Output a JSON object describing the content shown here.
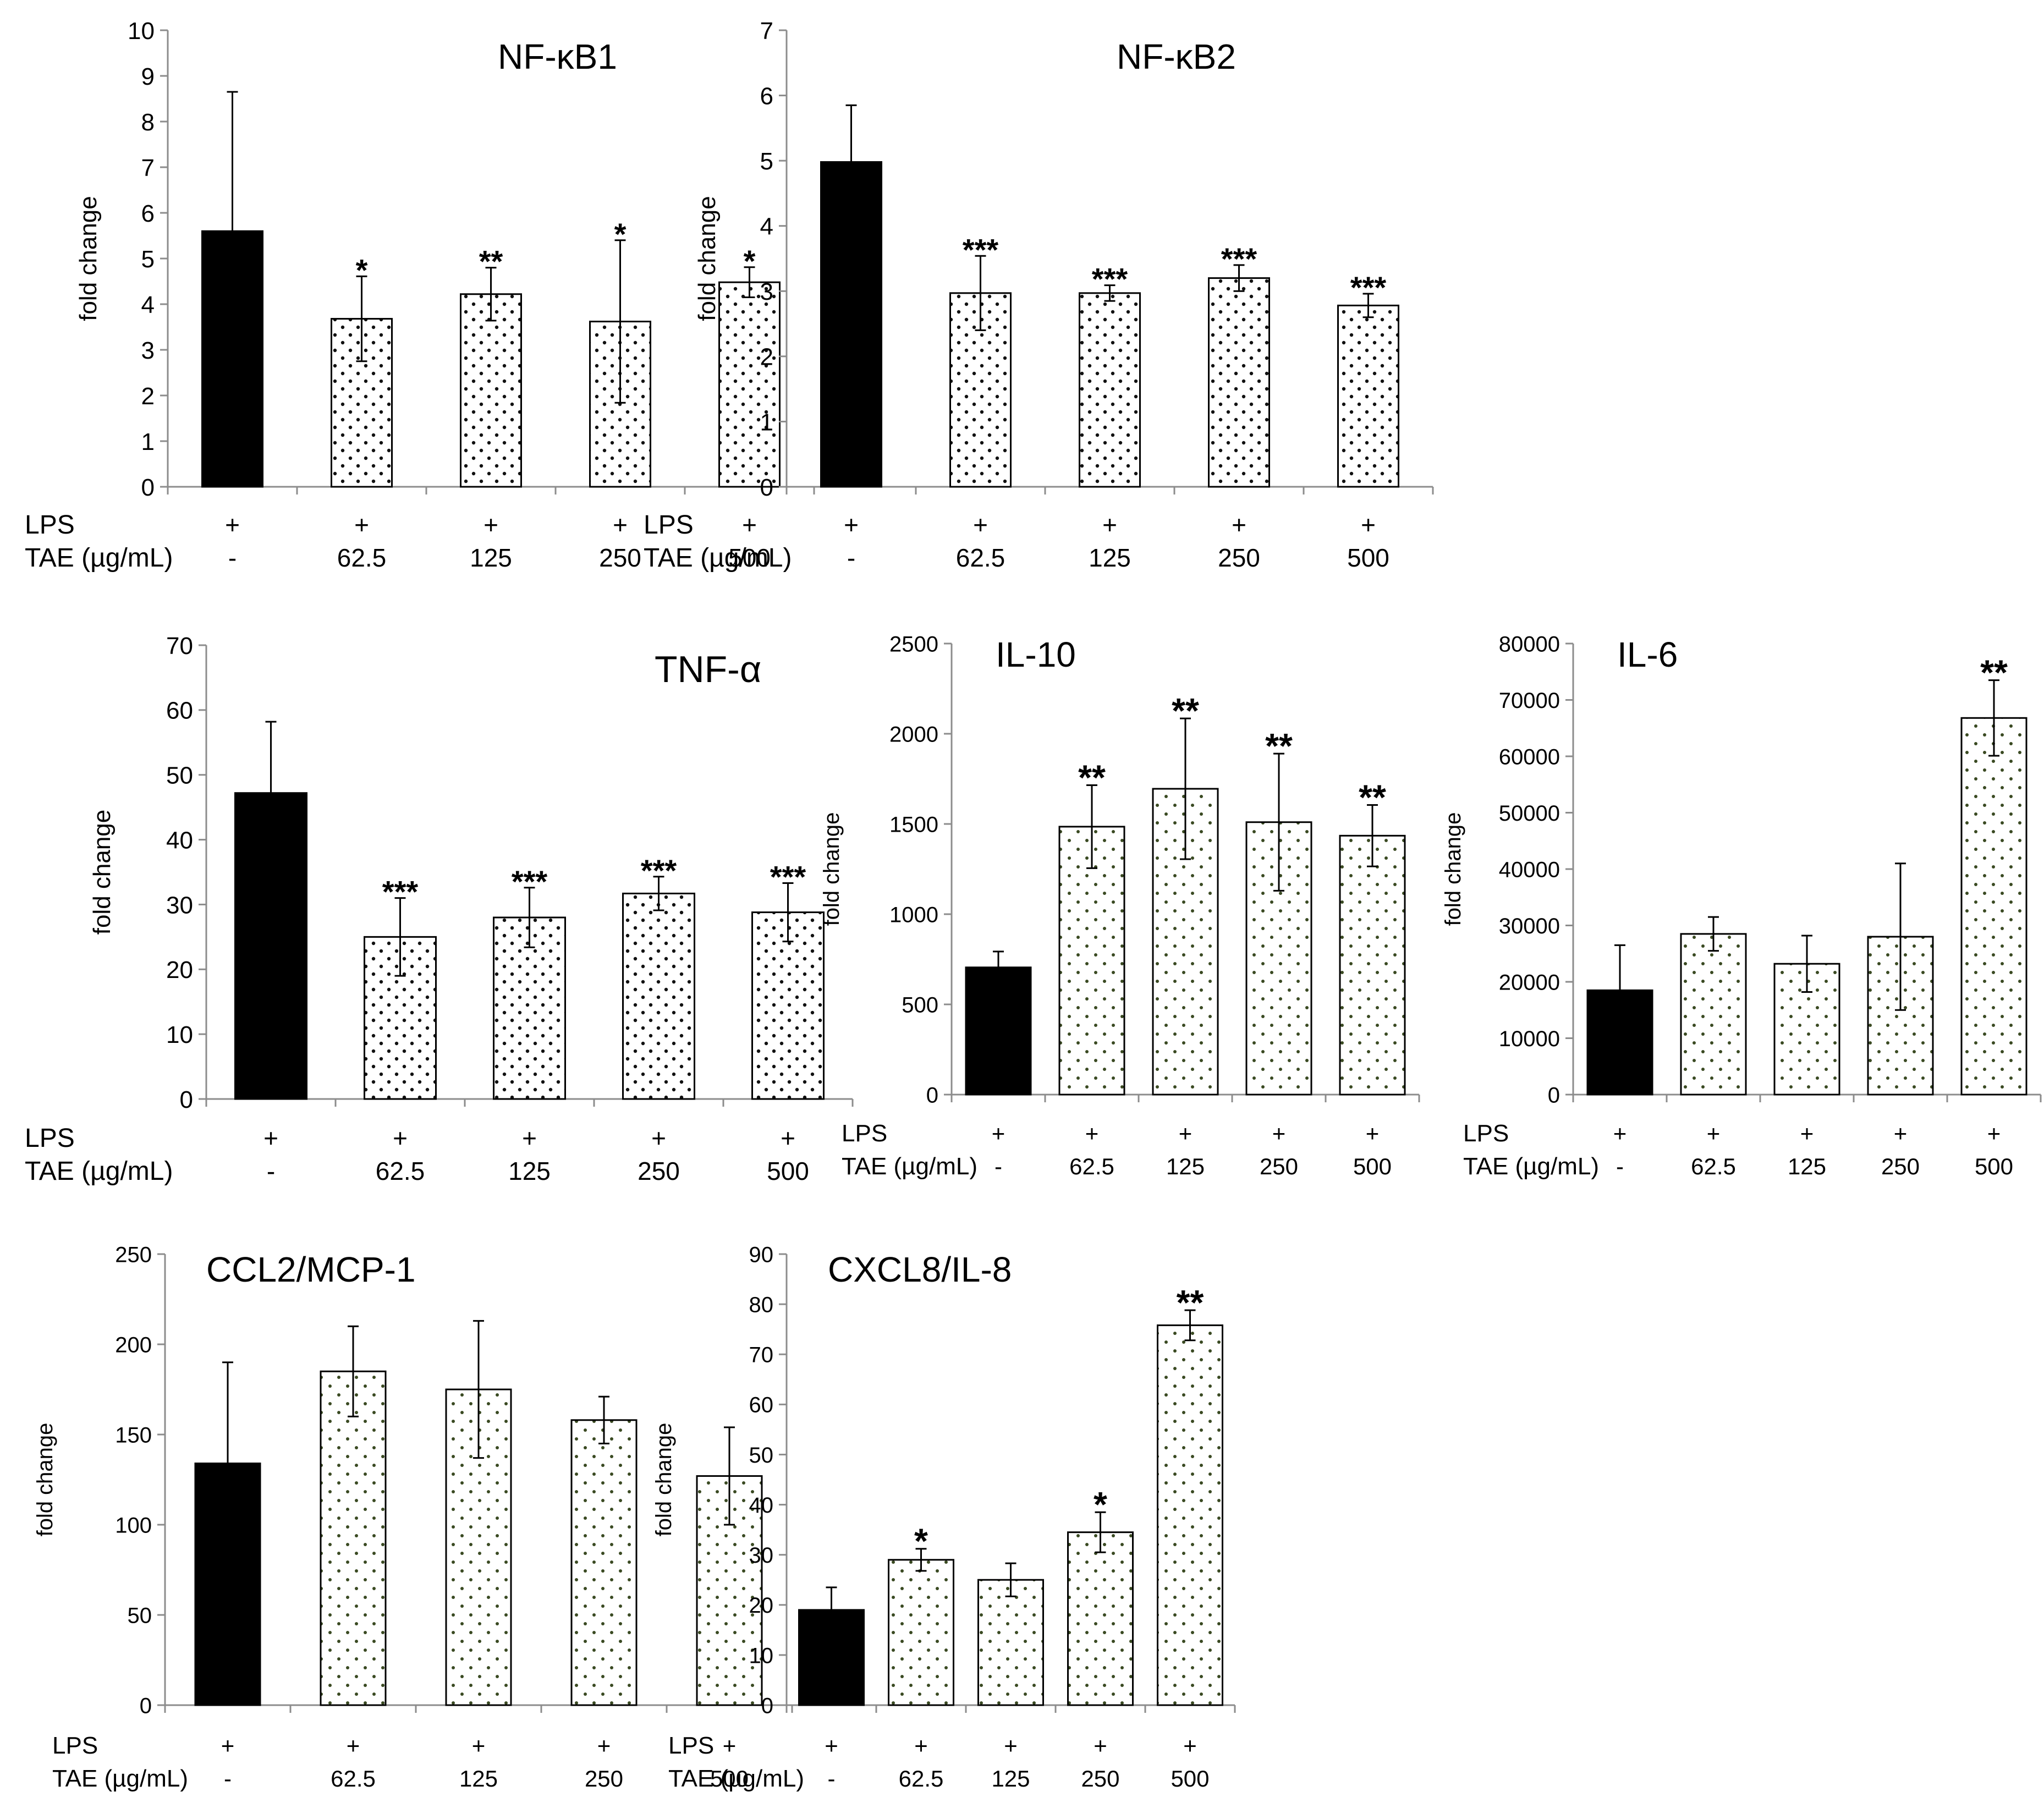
{
  "colors": {
    "control_bar": "#000000",
    "treated_fill": "#ffffff",
    "dots_black": "#111111",
    "dots_green": "#3a4a22",
    "axis": "#8c8c8c"
  },
  "row_labels": {
    "lps": "LPS",
    "tae": "TAE (µg/mL)"
  },
  "chart_data": [
    {
      "type": "bar",
      "title": "NF-κB1",
      "ylabel": "fold change",
      "ylim": [
        0,
        10
      ],
      "yticks": [
        "0",
        "1",
        "2",
        "3",
        "4",
        "5",
        "6",
        "7",
        "8",
        "9",
        "10"
      ],
      "lps": [
        "+",
        "+",
        "+",
        "+",
        "+"
      ],
      "tae": [
        "-",
        "62.5",
        "125",
        "250",
        "500"
      ],
      "values": [
        5.6,
        3.68,
        4.22,
        3.62,
        4.48
      ],
      "errors": [
        3.05,
        0.93,
        0.58,
        1.78,
        0.33
      ],
      "significance": [
        "",
        "*",
        "**",
        "*",
        "*"
      ],
      "pattern": "black-dots"
    },
    {
      "type": "bar",
      "title": "NF-κB2",
      "ylabel": "fold change",
      "ylim": [
        0,
        7
      ],
      "yticks": [
        "0",
        "1",
        "2",
        "3",
        "4",
        "5",
        "6",
        "7"
      ],
      "lps": [
        "+",
        "+",
        "+",
        "+",
        "+"
      ],
      "tae": [
        "-",
        "62.5",
        "125",
        "250",
        "500"
      ],
      "values": [
        4.98,
        2.97,
        2.97,
        3.2,
        2.78
      ],
      "errors": [
        0.87,
        0.57,
        0.12,
        0.2,
        0.18
      ],
      "significance": [
        "",
        "***",
        "***",
        "***",
        "***"
      ],
      "pattern": "black-dots"
    },
    {
      "type": "bar",
      "title": "TNF-α",
      "ylabel": "fold change",
      "ylim": [
        0,
        70
      ],
      "yticks": [
        "0",
        "10",
        "20",
        "30",
        "40",
        "50",
        "60",
        "70"
      ],
      "lps": [
        "+",
        "+",
        "+",
        "+",
        "+"
      ],
      "tae": [
        "-",
        "62.5",
        "125",
        "250",
        "500"
      ],
      "values": [
        47.2,
        25.0,
        28.0,
        31.7,
        28.8
      ],
      "errors": [
        11.0,
        6.0,
        4.6,
        2.6,
        4.5
      ],
      "significance": [
        "",
        "***",
        "***",
        "***",
        "***"
      ],
      "pattern": "black-dots"
    },
    {
      "type": "bar",
      "title": "IL-10",
      "ylabel": "fold change",
      "ylim": [
        0,
        2500
      ],
      "yticks": [
        "0",
        "500",
        "1000",
        "1500",
        "2000",
        "2500"
      ],
      "lps": [
        "+",
        "+",
        "+",
        "+",
        "+"
      ],
      "tae": [
        "-",
        "62.5",
        "125",
        "250",
        "500"
      ],
      "values": [
        705,
        1485,
        1695,
        1510,
        1435
      ],
      "errors": [
        88,
        230,
        390,
        380,
        170
      ],
      "significance": [
        "",
        "**",
        "**",
        "**",
        "**"
      ],
      "pattern": "green-dots"
    },
    {
      "type": "bar",
      "title": "IL-6",
      "ylabel": "fold change",
      "ylim": [
        0,
        80000
      ],
      "yticks": [
        "0",
        "10000",
        "20000",
        "30000",
        "40000",
        "50000",
        "60000",
        "70000",
        "80000"
      ],
      "lps": [
        "+",
        "+",
        "+",
        "+",
        "+"
      ],
      "tae": [
        "-",
        "62.5",
        "125",
        "250",
        "500"
      ],
      "values": [
        18500,
        28500,
        23200,
        28000,
        66800
      ],
      "errors": [
        8000,
        3000,
        5000,
        13000,
        6700
      ],
      "significance": [
        "",
        "",
        "",
        "",
        "**"
      ],
      "pattern": "green-dots"
    },
    {
      "type": "bar",
      "title": "CCL2/MCP-1",
      "ylabel": "fold change",
      "ylim": [
        0,
        250
      ],
      "yticks": [
        "0",
        "50",
        "100",
        "150",
        "200",
        "250"
      ],
      "lps": [
        "+",
        "+",
        "+",
        "+",
        "+"
      ],
      "tae": [
        "-",
        "62.5",
        "125",
        "250",
        "500"
      ],
      "values": [
        134,
        185,
        175,
        158,
        127
      ],
      "errors": [
        56,
        25,
        38,
        13,
        27
      ],
      "significance": [
        "",
        "",
        "",
        "",
        ""
      ],
      "pattern": "green-dots"
    },
    {
      "type": "bar",
      "title": "CXCL8/IL-8",
      "ylabel": "fold change",
      "ylim": [
        0,
        90
      ],
      "yticks": [
        "0",
        "10",
        "20",
        "30",
        "40",
        "50",
        "60",
        "70",
        "80",
        "90"
      ],
      "lps": [
        "+",
        "+",
        "+",
        "+",
        "+"
      ],
      "tae": [
        "-",
        "62.5",
        "125",
        "250",
        "500"
      ],
      "values": [
        19.0,
        29.0,
        25.0,
        34.5,
        75.8
      ],
      "errors": [
        4.5,
        2.2,
        3.3,
        4.0,
        3.0
      ],
      "significance": [
        "",
        "*",
        "",
        "*",
        "**"
      ],
      "pattern": "green-dots"
    }
  ]
}
